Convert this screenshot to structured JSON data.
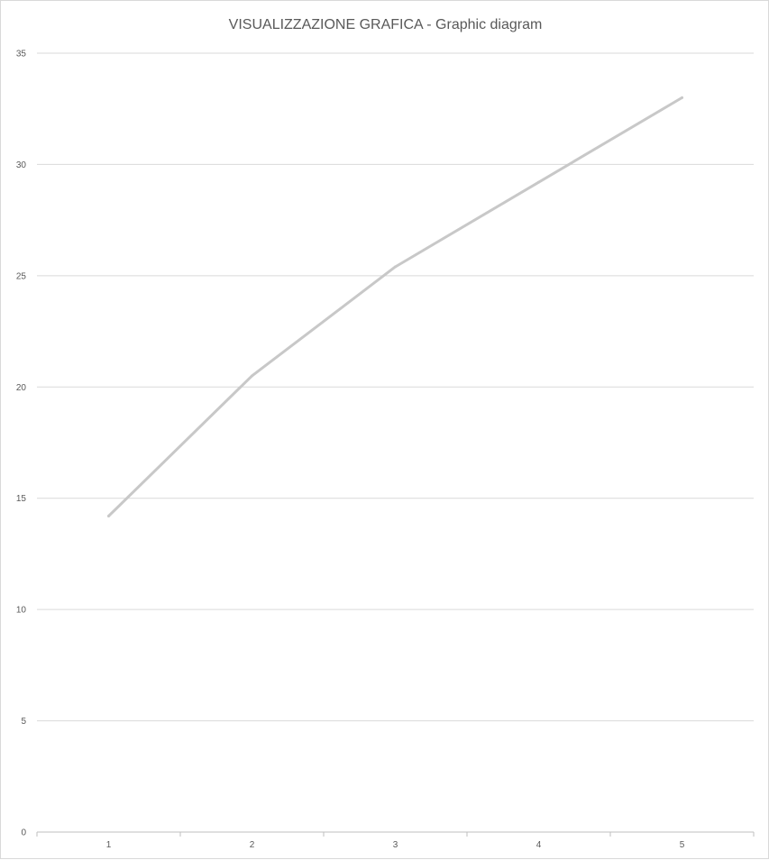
{
  "chart_data": {
    "type": "line",
    "title": "VISUALIZZAZIONE GRAFICA - Graphic diagram",
    "xlabel": "",
    "ylabel": "",
    "categories": [
      "1",
      "2",
      "3",
      "4",
      "5"
    ],
    "series": [
      {
        "values": [
          14.2,
          20.5,
          25.4,
          29.2,
          33.0
        ]
      }
    ],
    "ylim": [
      0,
      35
    ],
    "yticks": [
      0,
      5,
      10,
      15,
      20,
      25,
      30,
      35
    ],
    "grid": true,
    "legend": "none",
    "colors": {
      "line": "#c8c8c8",
      "grid": "#d9d9d9",
      "axis": "#bfbfbf",
      "text": "#595959"
    }
  }
}
